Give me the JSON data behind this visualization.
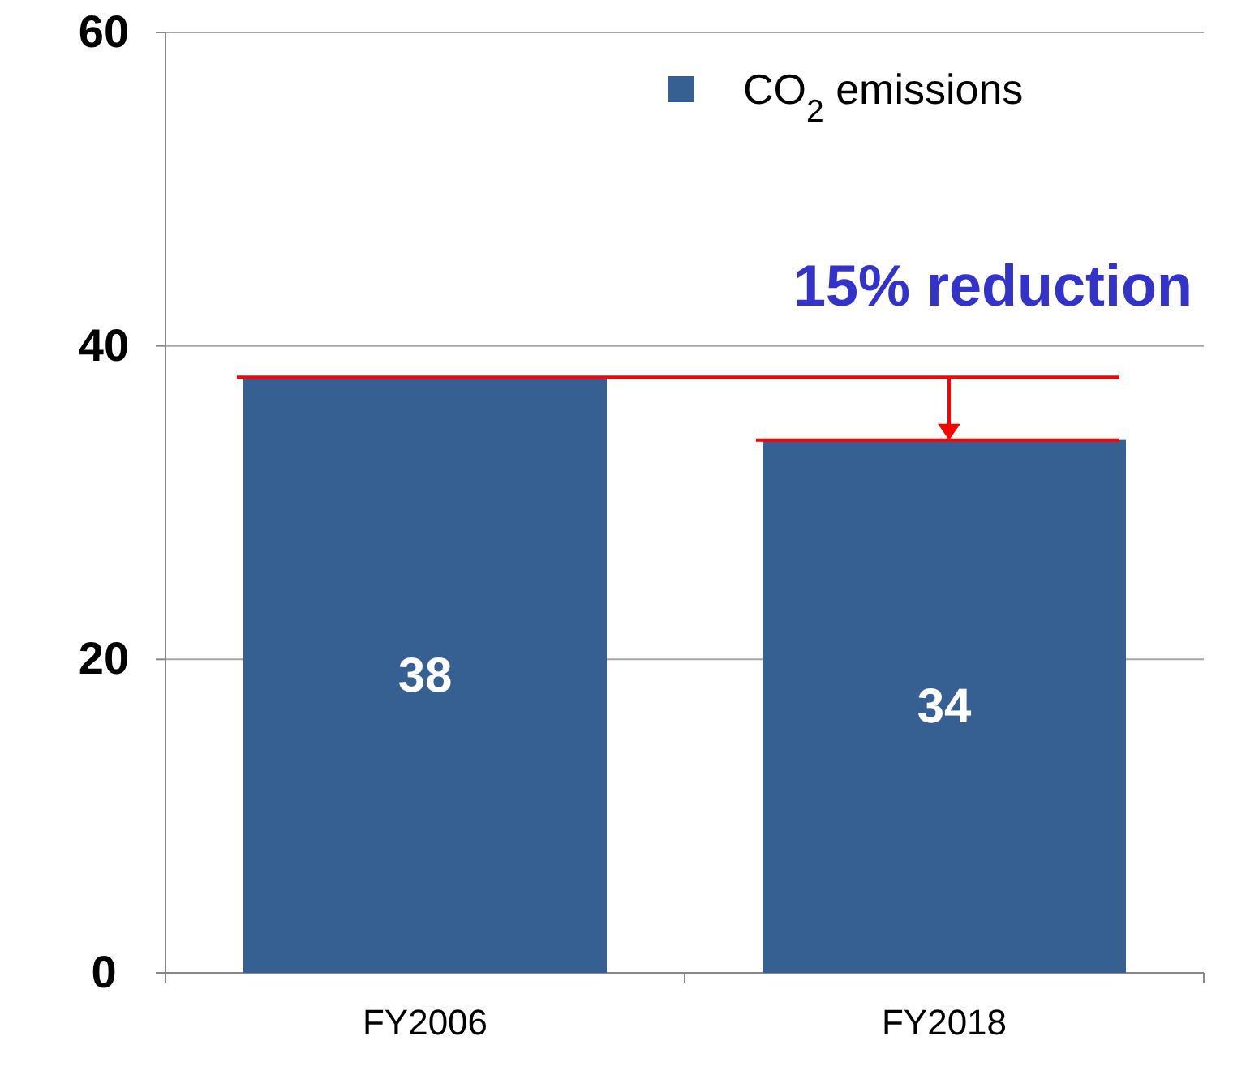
{
  "chart_data": {
    "type": "bar",
    "categories": [
      "FY2006",
      "FY2018"
    ],
    "series": [
      {
        "name": "CO$_{2}$ emissions",
        "color": "#366092",
        "values": [
          38,
          34
        ]
      }
    ],
    "ylim": [
      0,
      60
    ],
    "yticks": [
      0,
      20,
      40,
      60
    ],
    "grid": "y",
    "legend": "top right",
    "data_labels": true,
    "ref_lines": [
      {
        "axis": "y",
        "value": 38,
        "color": "#ff0000"
      },
      {
        "axis": "y",
        "value": 34,
        "color": "#ff0000"
      }
    ],
    "annotations": [
      {
        "text": "15% reduction",
        "x": "FY2018",
        "y": 38
      }
    ]
  }
}
